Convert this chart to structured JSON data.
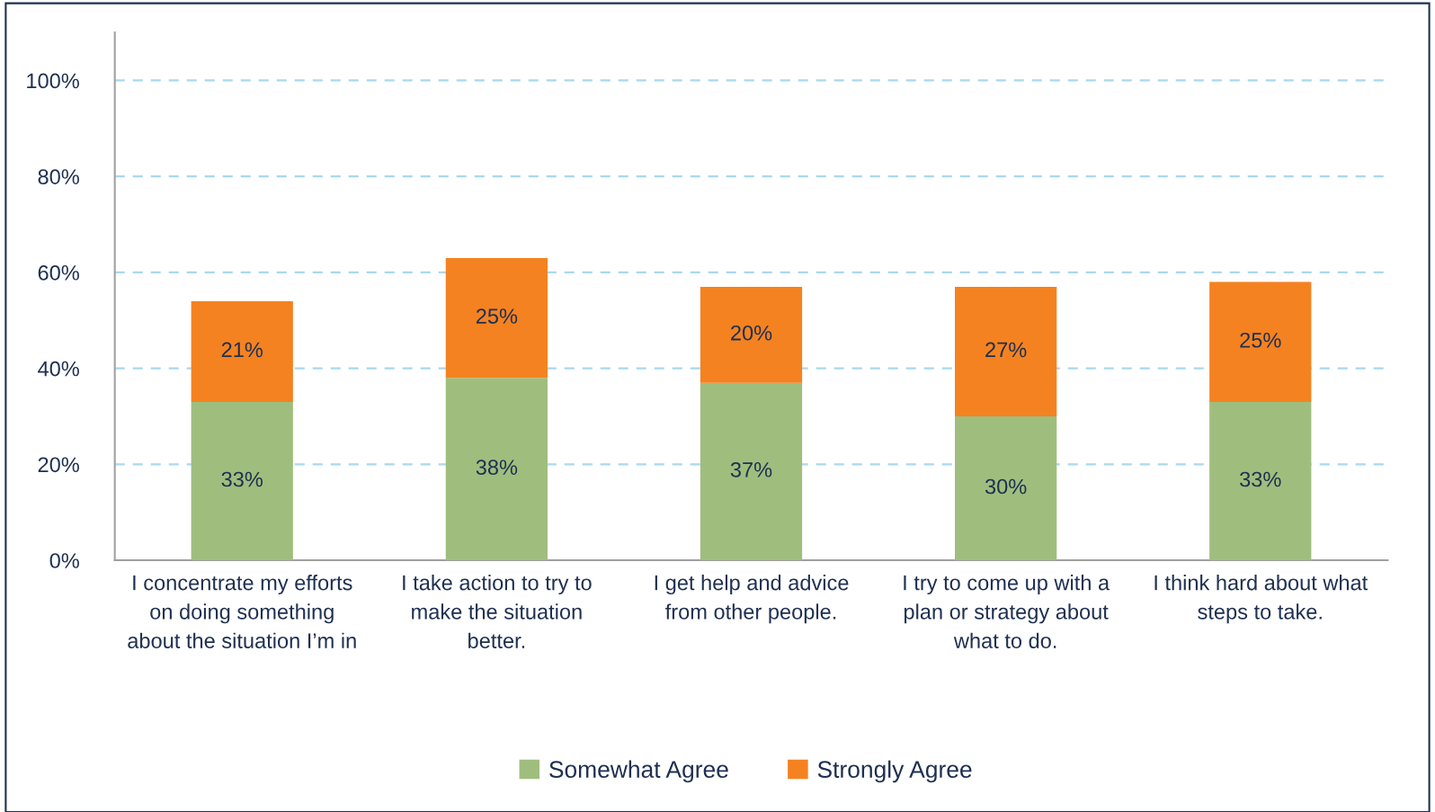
{
  "chart_data": {
    "type": "bar",
    "stacked": true,
    "categories": [
      "I concentrate my efforts on doing something about the situation I’m in",
      "I take action to try to make the situation better.",
      "I get help and advice from other people.",
      "I try to come up with a plan or strategy about what to do.",
      "I think hard about what steps to take."
    ],
    "series": [
      {
        "name": "Somewhat Agree",
        "color": "#9fbe7e",
        "values": [
          33,
          38,
          37,
          30,
          33
        ],
        "value_labels": [
          "33%",
          "38%",
          "37%",
          "30%",
          "33%"
        ]
      },
      {
        "name": "Strongly Agree",
        "color": "#f58220",
        "values": [
          21,
          25,
          20,
          27,
          25
        ],
        "value_labels": [
          "21%",
          "25%",
          "20%",
          "27%",
          "25%"
        ]
      }
    ],
    "ylim": [
      0,
      110
    ],
    "yticks": [
      {
        "value": 0,
        "label": "0%"
      },
      {
        "value": 20,
        "label": "20%"
      },
      {
        "value": 40,
        "label": "40%"
      },
      {
        "value": 60,
        "label": "60%"
      },
      {
        "value": 80,
        "label": "80%"
      },
      {
        "value": 100,
        "label": "100%"
      }
    ],
    "grid": "y",
    "legend": "bottom"
  }
}
